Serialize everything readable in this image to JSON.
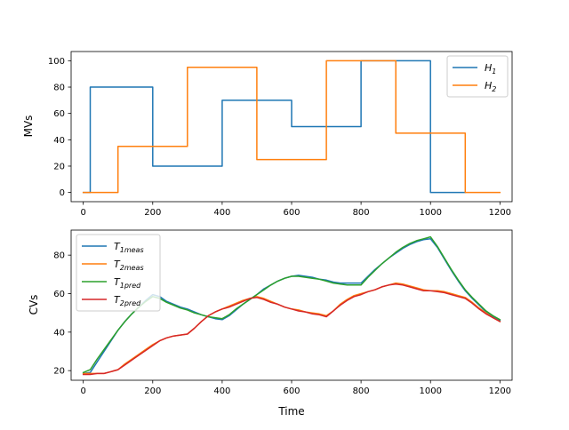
{
  "colors": {
    "blue": "#1f77b4",
    "orange": "#ff7f0e",
    "green": "#2ca02c",
    "red": "#d62728"
  },
  "chart_data": [
    {
      "type": "line",
      "title": "",
      "xlabel": "",
      "ylabel": "MVs",
      "xlim": [
        -35,
        1235
      ],
      "ylim": [
        -7,
        107
      ],
      "x_ticks": [
        0,
        200,
        400,
        600,
        800,
        1000,
        1200
      ],
      "y_ticks": [
        0,
        20,
        40,
        60,
        80,
        100
      ],
      "legend": {
        "position": "top-right"
      },
      "series": [
        {
          "name": "H",
          "name_sub": "1",
          "color": "#1f77b4",
          "step": true,
          "points": [
            [
              0,
              0
            ],
            [
              20,
              0
            ],
            [
              20,
              80
            ],
            [
              200,
              80
            ],
            [
              200,
              20
            ],
            [
              400,
              20
            ],
            [
              400,
              70
            ],
            [
              600,
              70
            ],
            [
              600,
              50
            ],
            [
              800,
              50
            ],
            [
              800,
              100
            ],
            [
              1000,
              100
            ],
            [
              1000,
              0
            ],
            [
              1100,
              0
            ]
          ]
        },
        {
          "name": "H",
          "name_sub": "2",
          "color": "#ff7f0e",
          "step": true,
          "points": [
            [
              0,
              0
            ],
            [
              100,
              0
            ],
            [
              100,
              35
            ],
            [
              300,
              35
            ],
            [
              300,
              95
            ],
            [
              500,
              95
            ],
            [
              500,
              25
            ],
            [
              700,
              25
            ],
            [
              700,
              100
            ],
            [
              900,
              100
            ],
            [
              900,
              45
            ],
            [
              1100,
              45
            ],
            [
              1100,
              0
            ],
            [
              1200,
              0
            ]
          ]
        }
      ]
    },
    {
      "type": "line",
      "title": "",
      "xlabel": "Time",
      "ylabel": "CVs",
      "xlim": [
        -35,
        1235
      ],
      "ylim": [
        15,
        93
      ],
      "x_ticks": [
        0,
        200,
        400,
        600,
        800,
        1000,
        1200
      ],
      "y_ticks": [
        20,
        40,
        60,
        80
      ],
      "legend": {
        "position": "top-left"
      },
      "series": [
        {
          "name": "T",
          "name_sub": "1meas",
          "color": "#1f77b4",
          "x": [
            0,
            20,
            40,
            60,
            80,
            100,
            120,
            140,
            160,
            180,
            200,
            220,
            240,
            260,
            280,
            300,
            320,
            340,
            360,
            380,
            400,
            420,
            440,
            460,
            480,
            500,
            520,
            540,
            560,
            580,
            600,
            620,
            640,
            660,
            680,
            700,
            720,
            740,
            760,
            780,
            800,
            820,
            840,
            860,
            880,
            900,
            920,
            940,
            960,
            980,
            1000,
            1020,
            1040,
            1060,
            1080,
            1100,
            1120,
            1140,
            1160,
            1180,
            1200
          ],
          "y": [
            18.5,
            19.0,
            24.5,
            30.0,
            35.5,
            41.0,
            45.5,
            49.5,
            53.0,
            56.5,
            59.5,
            58.5,
            56.0,
            54.5,
            53.0,
            52.0,
            50.5,
            49.0,
            48.0,
            47.0,
            46.5,
            48.5,
            51.5,
            54.5,
            57.0,
            59.5,
            62.5,
            64.5,
            66.5,
            68.0,
            69.0,
            69.5,
            69.0,
            68.5,
            67.5,
            67.0,
            66.0,
            65.5,
            65.5,
            65.5,
            65.5,
            69.0,
            72.5,
            75.5,
            78.5,
            81.0,
            83.5,
            85.5,
            87.0,
            88.0,
            88.5,
            84.0,
            78.0,
            72.0,
            66.5,
            61.5,
            57.5,
            54.0,
            50.5,
            48.0,
            46.0
          ]
        },
        {
          "name": "T",
          "name_sub": "2meas",
          "color": "#ff7f0e",
          "x": [
            0,
            20,
            40,
            60,
            80,
            100,
            120,
            140,
            160,
            180,
            200,
            220,
            240,
            260,
            280,
            300,
            320,
            340,
            360,
            380,
            400,
            420,
            440,
            460,
            480,
            500,
            520,
            540,
            560,
            580,
            600,
            620,
            640,
            660,
            680,
            700,
            720,
            740,
            760,
            780,
            800,
            820,
            840,
            860,
            880,
            900,
            920,
            940,
            960,
            980,
            1000,
            1020,
            1040,
            1060,
            1080,
            1100,
            1120,
            1140,
            1160,
            1180,
            1200
          ],
          "y": [
            18.5,
            18.5,
            18.5,
            18.5,
            19.5,
            20.5,
            23.5,
            26.0,
            28.5,
            31.0,
            33.5,
            35.5,
            37.0,
            38.0,
            38.5,
            39.0,
            42.0,
            45.5,
            48.5,
            50.5,
            52.0,
            53.5,
            55.0,
            56.5,
            57.5,
            58.5,
            57.5,
            56.0,
            54.5,
            53.0,
            52.0,
            51.5,
            50.5,
            50.0,
            49.5,
            48.5,
            51.0,
            54.5,
            57.0,
            59.0,
            60.0,
            61.0,
            62.0,
            63.5,
            64.5,
            65.5,
            65.0,
            64.0,
            63.0,
            62.0,
            61.5,
            61.5,
            61.0,
            60.0,
            59.0,
            58.0,
            55.5,
            52.5,
            50.0,
            47.5,
            45.5
          ]
        },
        {
          "name": "T",
          "name_sub": "1pred",
          "color": "#2ca02c",
          "x": [
            0,
            20,
            40,
            60,
            80,
            100,
            120,
            140,
            160,
            180,
            200,
            220,
            240,
            260,
            280,
            300,
            320,
            340,
            360,
            380,
            400,
            420,
            440,
            460,
            480,
            500,
            520,
            540,
            560,
            580,
            600,
            620,
            640,
            660,
            680,
            700,
            720,
            740,
            760,
            780,
            800,
            820,
            840,
            860,
            880,
            900,
            920,
            940,
            960,
            980,
            1000,
            1020,
            1040,
            1060,
            1080,
            1100,
            1120,
            1140,
            1160,
            1180,
            1200
          ],
          "y": [
            19.0,
            20.5,
            26.0,
            31.0,
            36.0,
            41.0,
            45.5,
            49.5,
            53.0,
            56.0,
            58.5,
            57.5,
            55.5,
            54.0,
            52.5,
            51.5,
            50.0,
            49.0,
            48.0,
            47.5,
            47.0,
            49.0,
            52.0,
            54.5,
            57.0,
            59.5,
            62.0,
            64.5,
            66.5,
            68.0,
            69.0,
            69.0,
            68.5,
            68.0,
            67.5,
            66.5,
            65.5,
            65.0,
            64.5,
            64.5,
            64.5,
            68.5,
            72.0,
            75.5,
            78.5,
            81.5,
            84.0,
            86.0,
            87.5,
            88.5,
            89.5,
            84.5,
            78.5,
            72.5,
            67.0,
            62.0,
            58.0,
            54.5,
            51.0,
            48.5,
            46.5
          ]
        },
        {
          "name": "T",
          "name_sub": "2pred",
          "color": "#d62728",
          "x": [
            0,
            20,
            40,
            60,
            80,
            100,
            120,
            140,
            160,
            180,
            200,
            220,
            240,
            260,
            280,
            300,
            320,
            340,
            360,
            380,
            400,
            420,
            440,
            460,
            480,
            500,
            520,
            540,
            560,
            580,
            600,
            620,
            640,
            660,
            680,
            700,
            720,
            740,
            760,
            780,
            800,
            820,
            840,
            860,
            880,
            900,
            920,
            940,
            960,
            980,
            1000,
            1020,
            1040,
            1060,
            1080,
            1100,
            1120,
            1140,
            1160,
            1180,
            1200
          ],
          "y": [
            18.0,
            18.0,
            18.5,
            18.5,
            19.5,
            20.5,
            23.0,
            25.5,
            28.0,
            30.5,
            33.0,
            35.5,
            37.0,
            38.0,
            38.5,
            39.0,
            42.0,
            45.5,
            48.5,
            50.5,
            52.0,
            53.0,
            54.5,
            56.0,
            57.5,
            58.0,
            57.0,
            55.5,
            54.5,
            53.0,
            52.0,
            51.0,
            50.5,
            49.5,
            49.0,
            48.0,
            51.0,
            54.0,
            56.5,
            58.5,
            59.5,
            61.0,
            62.0,
            63.5,
            64.5,
            65.0,
            64.5,
            63.5,
            62.5,
            61.5,
            61.5,
            61.0,
            60.5,
            59.5,
            58.5,
            57.5,
            55.0,
            52.0,
            49.5,
            47.5,
            45.5
          ]
        }
      ]
    }
  ]
}
